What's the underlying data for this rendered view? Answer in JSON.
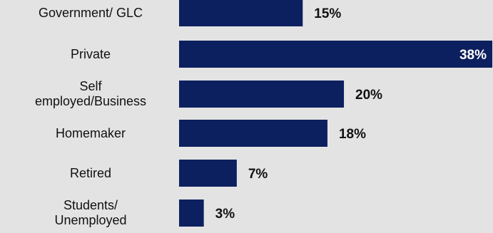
{
  "chart_data": {
    "type": "bar",
    "orientation": "horizontal",
    "categories": [
      "Government/ GLC",
      "Private",
      "Self employed/Business",
      "Homemaker",
      "Retired",
      "Students/ Unemployed"
    ],
    "category_lines": [
      [
        "Government/ GLC"
      ],
      [
        "Private"
      ],
      [
        "Self",
        "employed/Business"
      ],
      [
        "Homemaker"
      ],
      [
        "Retired"
      ],
      [
        "Students/",
        "Unemployed"
      ]
    ],
    "values": [
      15,
      38,
      20,
      18,
      7,
      3
    ],
    "value_labels": [
      "15%",
      "38%",
      "20%",
      "18%",
      "7%",
      "3%"
    ],
    "xlim": [
      0,
      38
    ],
    "unit": "%",
    "bar_color": "#0c1f5e",
    "inside_label_color": "#ffffff",
    "outside_label_color": "#111111",
    "background": "#e3e3e3",
    "grid": false,
    "legend": "none"
  }
}
